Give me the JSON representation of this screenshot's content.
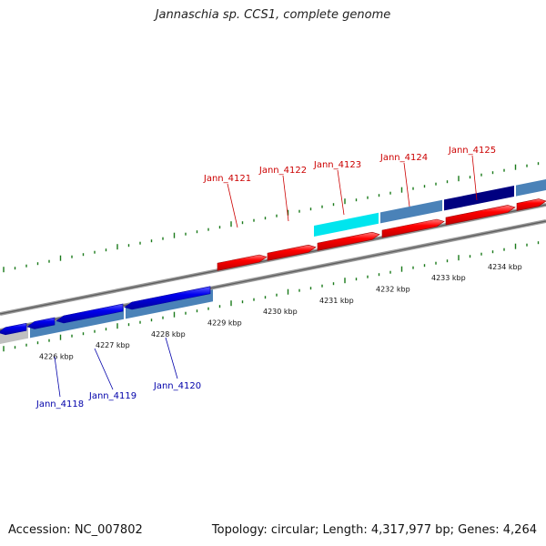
{
  "title": "Jannaschia sp. CCS1, complete genome",
  "footer": {
    "accession": "Accession: NC_007802",
    "stats": "Topology: circular; Length: 4,317,977 bp; Genes: 4,264"
  },
  "colors": {
    "forward_gene": "#ff0000",
    "reverse_gene": "#0000ee",
    "forward_label": "#cc0000",
    "reverse_label": "#0000aa",
    "backbone": "#888888",
    "tick": "#1a7a1a",
    "cds_light": "#4a82b8",
    "cds_dark": "#000080",
    "highlight": "#00e5ee",
    "grey_block": "#c0c0c0"
  },
  "forward_genes": [
    {
      "label": "Jann_4121"
    },
    {
      "label": "Jann_4122"
    },
    {
      "label": "Jann_4123"
    },
    {
      "label": "Jann_4124"
    },
    {
      "label": "Jann_4125"
    }
  ],
  "reverse_genes": [
    {
      "label": "Jann_4118"
    },
    {
      "label": "Jann_4119"
    },
    {
      "label": "Jann_4120"
    }
  ],
  "kbp_ticks": [
    "4226 kbp",
    "4227 kbp",
    "4228 kbp",
    "4229 kbp",
    "4230 kbp",
    "4231 kbp",
    "4232 kbp",
    "4233 kbp",
    "4234 kbp"
  ]
}
